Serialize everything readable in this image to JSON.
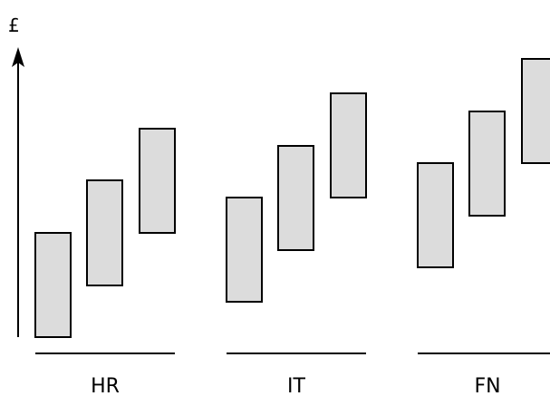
{
  "axis": {
    "symbol": "£"
  },
  "groups": [
    {
      "label": "HR",
      "bands": 3
    },
    {
      "label": "IT",
      "bands": 3
    },
    {
      "label": "FN",
      "bands": 3
    }
  ]
}
